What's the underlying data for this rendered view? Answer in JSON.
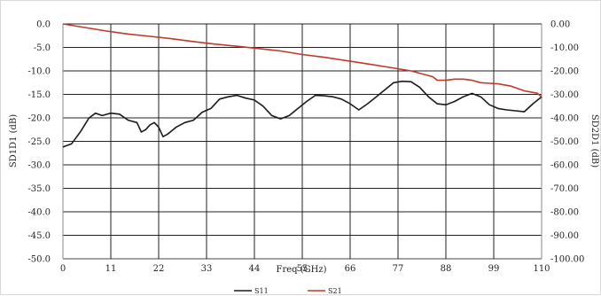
{
  "chart_data": {
    "type": "line",
    "xlabel": "Freq (GHz)",
    "ylabel_left": "SD1D1 (dB)",
    "ylabel_right": "SD2D1 (dB)",
    "xlim": [
      0,
      110
    ],
    "ylim_left": [
      -50,
      0
    ],
    "ylim_right": [
      -100,
      0
    ],
    "grid": true,
    "legend_position": "bottom",
    "x_ticks": [
      "0",
      "11",
      "22",
      "33",
      "44",
      "55",
      "66",
      "77",
      "88",
      "99",
      "110"
    ],
    "y_left_ticks": [
      "0.0",
      "-5.0",
      "-10.0",
      "-15.0",
      "-20.0",
      "-25.0",
      "-30.0",
      "-35.0",
      "-40.0",
      "-45.0",
      "-50.0"
    ],
    "y_right_ticks": [
      "0.00",
      "-10.00",
      "-20.00",
      "-30.00",
      "-40.00",
      "-50.00",
      "-60.00",
      "-70.00",
      "-80.00",
      "-90.00",
      "-100.00"
    ],
    "series": [
      {
        "name": "S11",
        "color": "#1a1a1a",
        "axis": "left",
        "x": [
          0,
          2,
          4,
          6,
          7.5,
          9,
          11,
          13,
          15,
          17,
          18,
          19,
          20,
          21,
          22,
          23,
          24,
          26,
          28,
          30,
          32,
          34,
          36,
          38,
          40,
          42,
          44,
          46,
          48,
          50,
          52,
          54,
          56,
          58,
          60,
          62,
          64,
          66,
          68,
          70,
          72,
          74,
          76,
          78,
          80,
          82,
          84,
          86,
          88,
          90,
          92,
          94,
          96,
          98,
          100,
          102,
          104,
          106,
          108,
          110
        ],
        "y": [
          -26.2,
          -25.5,
          -23.0,
          -20.0,
          -19.0,
          -19.5,
          -19.0,
          -19.2,
          -20.5,
          -21.0,
          -23.0,
          -22.5,
          -21.5,
          -21.0,
          -22.0,
          -24.0,
          -23.5,
          -22.0,
          -21.0,
          -20.5,
          -18.8,
          -18.0,
          -16.0,
          -15.5,
          -15.2,
          -15.8,
          -16.2,
          -17.5,
          -19.5,
          -20.2,
          -19.5,
          -18.0,
          -16.5,
          -15.2,
          -15.3,
          -15.5,
          -16.0,
          -17.0,
          -18.3,
          -17.0,
          -15.5,
          -14.0,
          -12.5,
          -12.2,
          -12.3,
          -13.5,
          -15.5,
          -17.0,
          -17.2,
          -16.5,
          -15.5,
          -14.8,
          -15.5,
          -17.2,
          -18.0,
          -18.3,
          -18.5,
          -18.7,
          -17.0,
          -15.5
        ]
      },
      {
        "name": "S21",
        "color": "#c0392b",
        "axis": "right",
        "x": [
          0,
          5,
          10,
          15,
          20,
          25,
          30,
          35,
          40,
          45,
          50,
          55,
          60,
          65,
          70,
          75,
          80,
          85,
          86,
          88,
          90,
          92,
          94,
          96,
          98,
          100,
          103,
          106,
          109,
          110
        ],
        "y": [
          0.0,
          -1.5,
          -3.0,
          -4.3,
          -5.3,
          -6.3,
          -7.5,
          -8.6,
          -9.5,
          -10.5,
          -11.5,
          -13.0,
          -14.2,
          -15.6,
          -17.0,
          -18.5,
          -20.0,
          -22.5,
          -24.0,
          -24.0,
          -23.5,
          -23.5,
          -24.0,
          -25.0,
          -25.3,
          -25.5,
          -26.5,
          -28.5,
          -29.5,
          -31.0
        ]
      }
    ]
  }
}
